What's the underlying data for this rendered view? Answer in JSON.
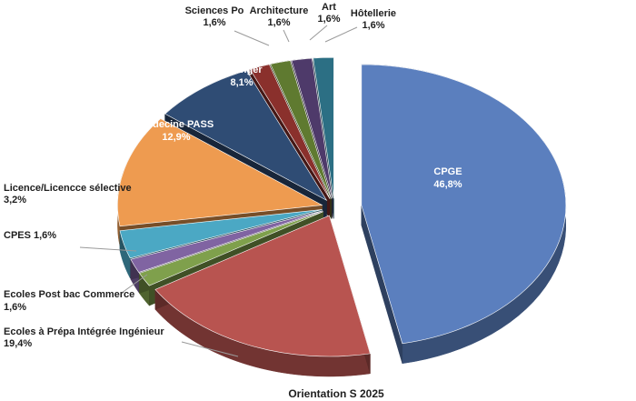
{
  "chart_data": {
    "type": "pie",
    "title": "Orientation S 2025",
    "style": "3d-exploded",
    "slices": [
      {
        "label": "CPGE",
        "value": 46.8,
        "display": "46,8%",
        "color": "#5b7fbe",
        "label_pos": "inside"
      },
      {
        "label": "Ecoles à Prépa Intégrée Ingénieur",
        "value": 19.4,
        "display": "19,4%",
        "color": "#b85450",
        "label_pos": "outside"
      },
      {
        "label": "Ecoles Post bac Commerce",
        "value": 1.6,
        "display": "1,6%",
        "color": "#7fa04c",
        "label_pos": "outside"
      },
      {
        "label": "CPES",
        "value": 1.6,
        "display": "1,6%",
        "color": "#8064a2",
        "label_pos": "outside"
      },
      {
        "label": "Licence/Licencce sélective",
        "value": 3.2,
        "display": "3,2%",
        "color": "#4ba8c4",
        "label_pos": "outside"
      },
      {
        "label": "Médecine PASS",
        "value": 12.9,
        "display": "12,9%",
        "color": "#ee9b50",
        "label_pos": "inside"
      },
      {
        "label": "Etranger",
        "value": 8.1,
        "display": "8,1%",
        "color": "#2f4c74",
        "label_pos": "inside"
      },
      {
        "label": "Sciences Po",
        "value": 1.6,
        "display": "1,6%",
        "color": "#8a302c",
        "label_pos": "outside"
      },
      {
        "label": "Architecture",
        "value": 1.6,
        "display": "1,6%",
        "color": "#5f7a30",
        "label_pos": "outside"
      },
      {
        "label": "Art",
        "value": 1.6,
        "display": "1,6%",
        "color": "#4e3a6a",
        "label_pos": "outside"
      },
      {
        "label": "Hôtellerie",
        "value": 1.6,
        "display": "1,6%",
        "color": "#2c6f84",
        "label_pos": "outside"
      }
    ]
  }
}
